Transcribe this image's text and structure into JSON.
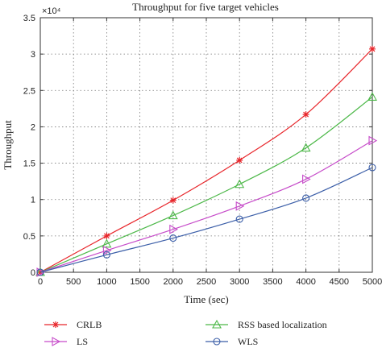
{
  "chart_data": {
    "type": "line",
    "title": "Throughput for five target vehicles",
    "xlabel": "Time (sec)",
    "ylabel": "Throughput",
    "y_scale_label": "×10⁴",
    "xlim": [
      0,
      5000
    ],
    "ylim": [
      0,
      35000
    ],
    "xticks": [
      0,
      500,
      1000,
      1500,
      2000,
      2500,
      3000,
      3500,
      4000,
      4500,
      5000
    ],
    "yticks": [
      0,
      5000,
      10000,
      15000,
      20000,
      25000,
      30000,
      35000
    ],
    "xtick_labels": [
      "0",
      "500",
      "1000",
      "1500",
      "2000",
      "2500",
      "3000",
      "3500",
      "4000",
      "4500",
      "5000"
    ],
    "ytick_labels": [
      "0",
      "0.5",
      "1",
      "1.5",
      "2",
      "2.5",
      "3",
      "3.5"
    ],
    "grid": true,
    "legend_position": "bottom",
    "x": [
      0,
      1000,
      2000,
      3000,
      4000,
      5000
    ],
    "series": [
      {
        "name": "CRLB",
        "color": "#e8262b",
        "marker": "asterisk",
        "values": [
          0,
          5000,
          9900,
          15400,
          21700,
          30700
        ]
      },
      {
        "name": "RSS based localization",
        "color": "#4cb848",
        "marker": "triangle-up",
        "values": [
          0,
          3900,
          7800,
          12100,
          17100,
          24100
        ]
      },
      {
        "name": "LS",
        "color": "#c64bc9",
        "marker": "triangle-right",
        "values": [
          0,
          3000,
          5900,
          9100,
          12800,
          18100
        ]
      },
      {
        "name": "WLS",
        "color": "#3b5ea8",
        "marker": "circle",
        "values": [
          0,
          2400,
          4700,
          7300,
          10200,
          14400
        ]
      }
    ]
  }
}
